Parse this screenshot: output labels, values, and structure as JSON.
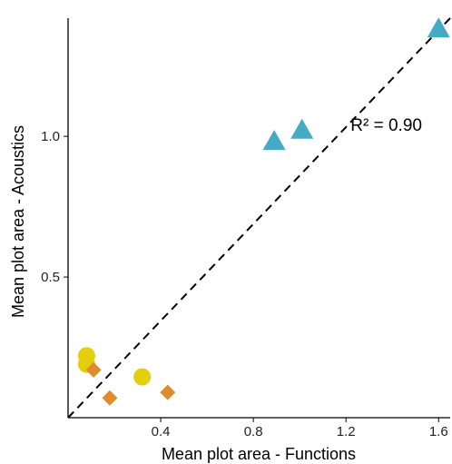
{
  "chart_data": {
    "type": "scatter",
    "title": "",
    "xlabel": "Mean plot area - Functions",
    "ylabel": "Mean plot area - Acoustics",
    "xlim": [
      0.0,
      1.65
    ],
    "ylim": [
      0.0,
      1.42
    ],
    "x_ticks": [
      0.4,
      0.8,
      1.2,
      1.6
    ],
    "x_tick_labels": [
      "0.4",
      "0.8",
      "1.2",
      "1.6"
    ],
    "y_ticks": [
      0.5,
      1.0
    ],
    "y_tick_labels": [
      "0.5",
      "1.0"
    ],
    "grid": false,
    "legend": "none",
    "reference_line": {
      "style": "dashed",
      "from": [
        0.0,
        0.0
      ],
      "to": [
        1.65,
        1.42
      ]
    },
    "annotations": [
      {
        "text": "R² = 0.90",
        "x": 1.22,
        "y": 1.02
      }
    ],
    "series": [
      {
        "marker": "triangle",
        "color": "#45aac4",
        "points": [
          [
            0.89,
            0.98
          ],
          [
            1.01,
            1.02
          ],
          [
            1.6,
            1.38
          ]
        ]
      },
      {
        "marker": "circle",
        "color": "#e3cf0e",
        "points": [
          [
            0.08,
            0.22
          ],
          [
            0.08,
            0.19
          ],
          [
            0.32,
            0.145
          ]
        ]
      },
      {
        "marker": "diamond",
        "color": "#df8c31",
        "points": [
          [
            0.11,
            0.17
          ],
          [
            0.18,
            0.07
          ],
          [
            0.43,
            0.09
          ]
        ]
      }
    ]
  }
}
